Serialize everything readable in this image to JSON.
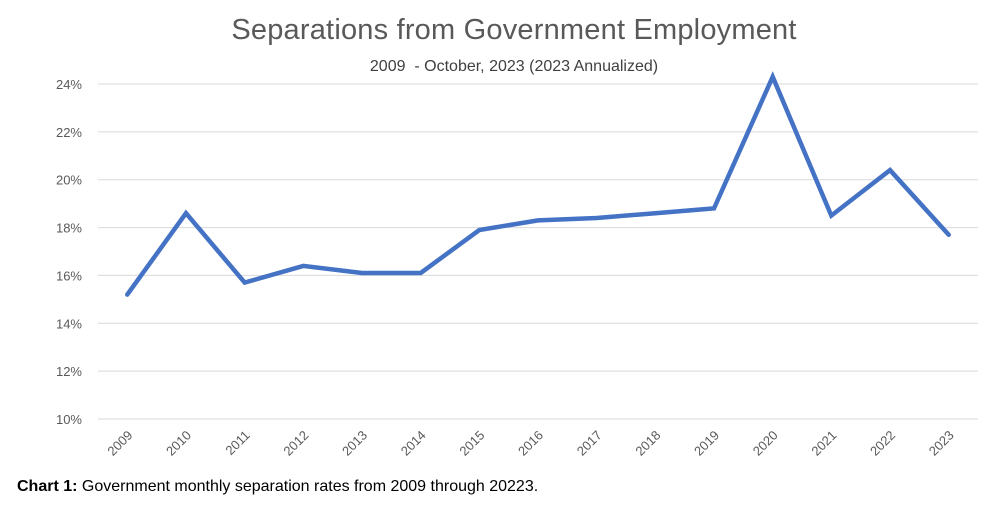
{
  "chart_data": {
    "type": "line",
    "title": "Separations from Government Employment",
    "subtitle": "2009  - October, 2023 (2023 Annualized)",
    "xlabel": "",
    "ylabel": "",
    "categories": [
      "2009",
      "2010",
      "2011",
      "2012",
      "2013",
      "2014",
      "2015",
      "2016",
      "2017",
      "2018",
      "2019",
      "2020",
      "2021",
      "2022",
      "2023"
    ],
    "series": [
      {
        "name": "Separation rate",
        "color": "#4472C4",
        "values": [
          15.2,
          18.6,
          15.7,
          16.4,
          16.1,
          16.1,
          17.9,
          18.3,
          18.4,
          18.6,
          18.8,
          24.3,
          18.5,
          20.4,
          17.7
        ]
      }
    ],
    "ylim": [
      10,
      24
    ],
    "yticks": [
      10,
      12,
      14,
      16,
      18,
      20,
      22,
      24
    ],
    "ytick_labels": [
      "10%",
      "12%",
      "14%",
      "16%",
      "18%",
      "20%",
      "22%",
      "24%"
    ],
    "grid": "horizontal",
    "legend": "none",
    "grid_color": "#D9D9D9"
  },
  "caption": {
    "label": "Chart 1:",
    "text": " Government monthly separation rates from 2009 through 20223."
  }
}
